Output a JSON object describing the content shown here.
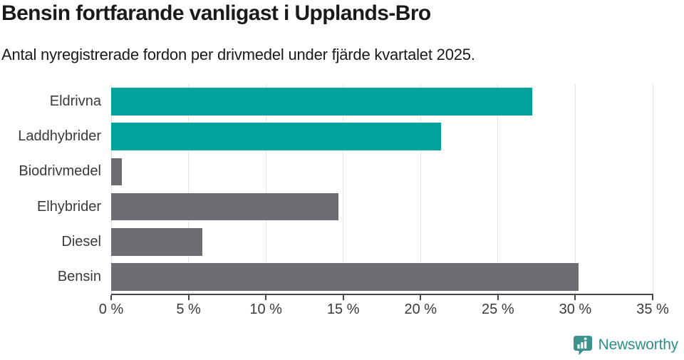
{
  "header": {
    "title": "Bensin fortfarande vanligast i Upplands-Bro",
    "subtitle": "Antal nyregistrerade fordon per drivmedel under fjärde kvartalet 2025."
  },
  "chart_data": {
    "type": "bar",
    "orientation": "horizontal",
    "title": "Bensin fortfarande vanligast i Upplands-Bro",
    "subtitle": "Antal nyregistrerade fordon per drivmedel under fjärde kvartalet 2025.",
    "categories": [
      "Eldrivna",
      "Laddhybrider",
      "Biodrivmedel",
      "Elhybrider",
      "Diesel",
      "Bensin"
    ],
    "values": [
      27.2,
      21.3,
      0.7,
      14.7,
      5.9,
      30.2
    ],
    "unit": "%",
    "bar_colors": [
      "#00a29b",
      "#00a29b",
      "#6c6c72",
      "#6c6c72",
      "#6c6c72",
      "#6c6c72"
    ],
    "xlim": [
      0,
      35
    ],
    "x_ticks": [
      0,
      5,
      10,
      15,
      20,
      25,
      30,
      35
    ],
    "x_tick_labels": [
      "0 %",
      "5 %",
      "10 %",
      "15 %",
      "20 %",
      "25 %",
      "30 %",
      "35 %"
    ],
    "xlabel": "",
    "ylabel": "",
    "grid": true,
    "legend_position": "none"
  },
  "colors": {
    "accent_teal": "#00a29b",
    "neutral_gray": "#6c6c72",
    "axis": "#474747",
    "gridline": "#e5e5e5",
    "text_dark": "#1a1a1a",
    "label_gray": "#3a3a3a",
    "logo_teal": "#2f8d87",
    "logo_icon_teal": "#3a938d"
  },
  "footer": {
    "brand": "Newsworthy",
    "logo_icon": "newsworthy-speech-bubble-bar-chart-icon"
  }
}
